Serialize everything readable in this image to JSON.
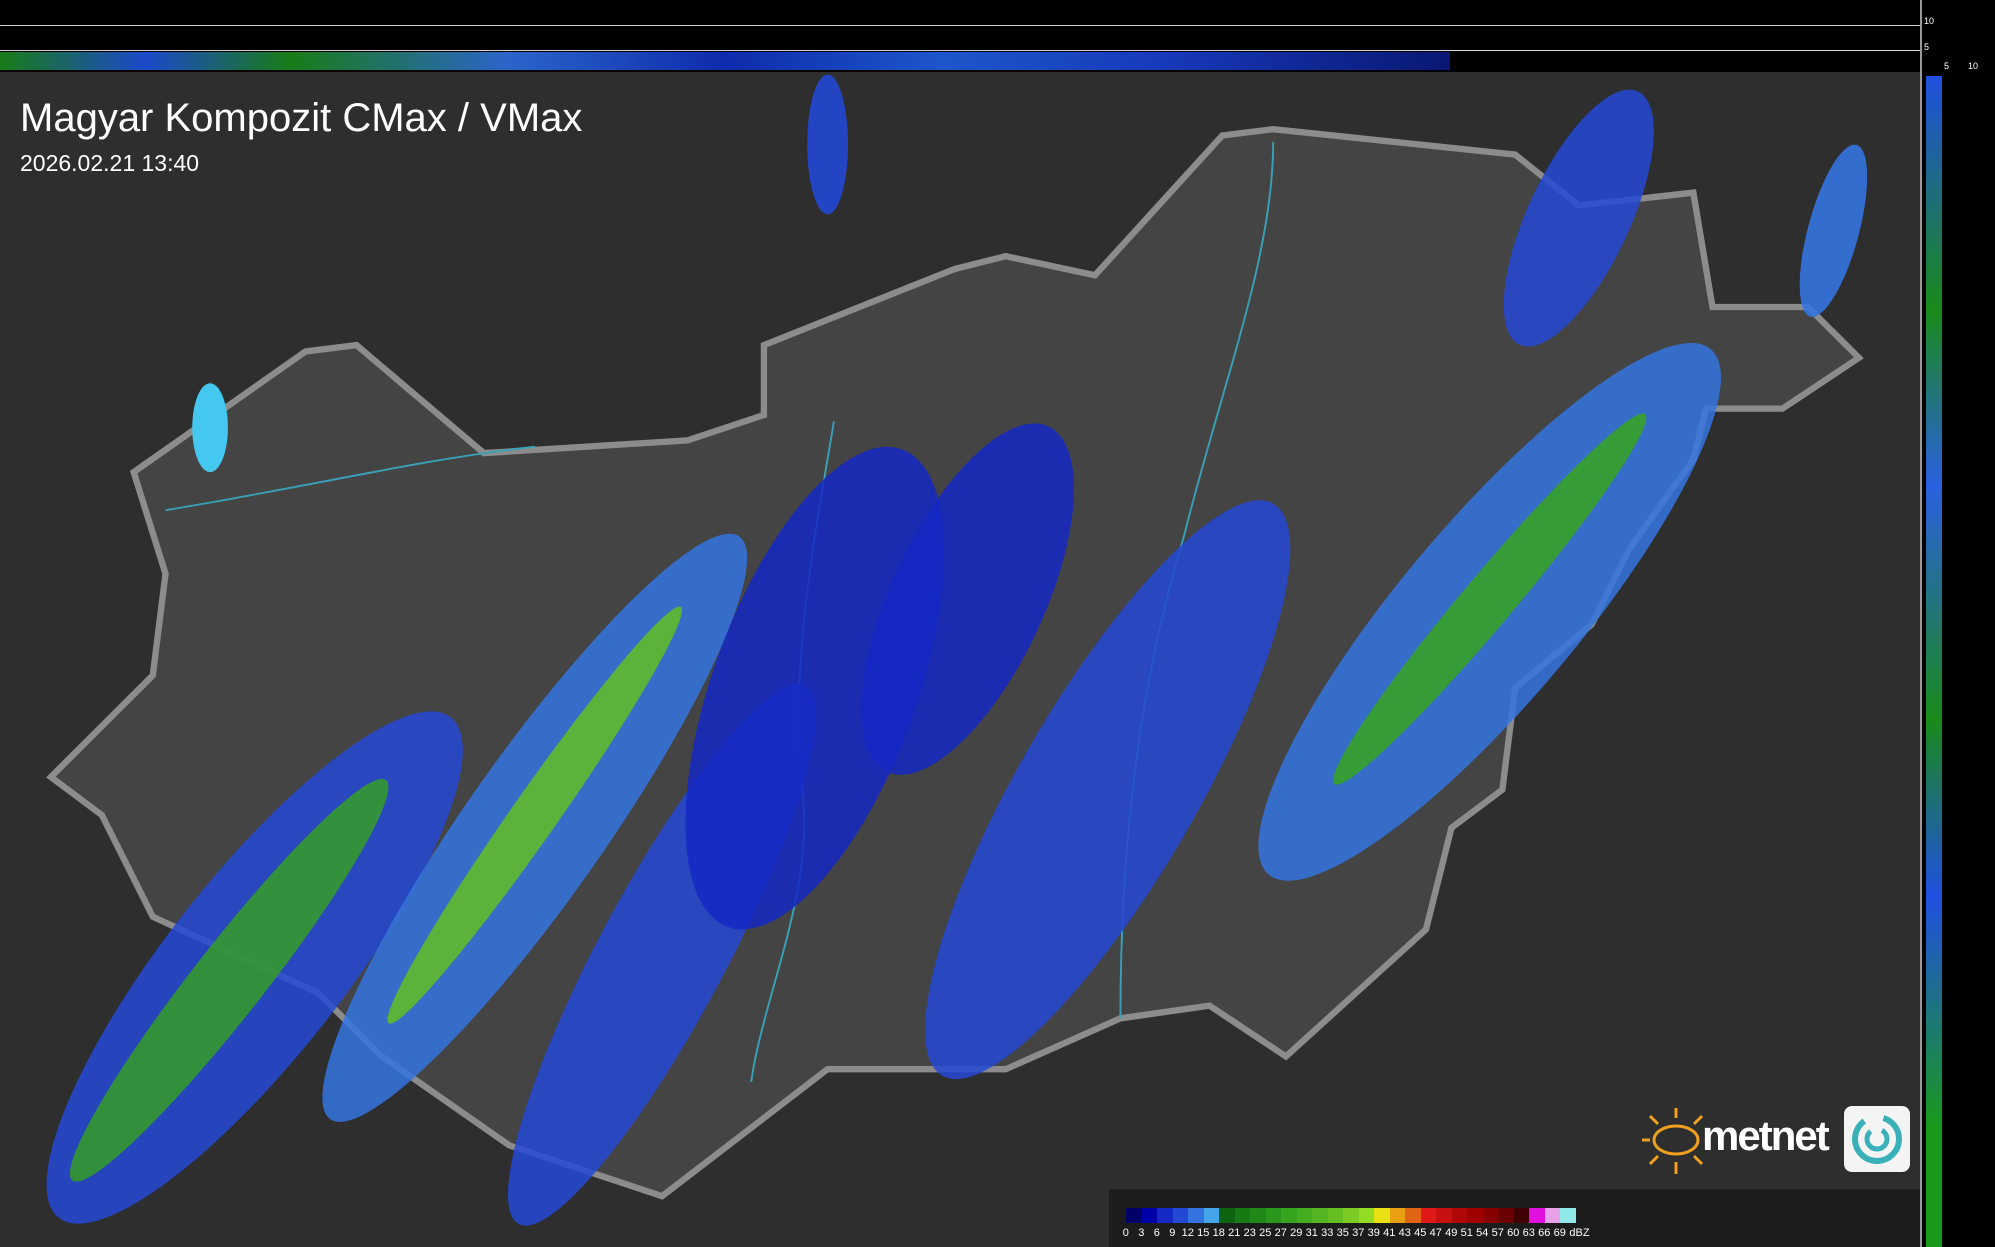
{
  "header": {
    "title": "Magyar Kompozit CMax / VMax",
    "timestamp": "2026.02.21 13:40"
  },
  "side_axis": {
    "top_ticks": [
      "10",
      "5"
    ],
    "bottom_ticks": [
      "5",
      "10"
    ]
  },
  "logo": {
    "brand": "metnet"
  },
  "legend": {
    "unit": "dBZ",
    "labels": [
      "0",
      "3",
      "6",
      "9",
      "12",
      "15",
      "18",
      "21",
      "23",
      "25",
      "27",
      "29",
      "31",
      "33",
      "35",
      "37",
      "39",
      "41",
      "43",
      "45",
      "47",
      "49",
      "51",
      "54",
      "57",
      "60",
      "63",
      "66",
      "69"
    ],
    "colors": [
      "#000068",
      "#0000a8",
      "#1428c4",
      "#2448d4",
      "#3474e0",
      "#44a4ec",
      "#0e6410",
      "#187a12",
      "#208816",
      "#2a961c",
      "#36a41e",
      "#44ae20",
      "#54b622",
      "#64be22",
      "#7cca24",
      "#94dc24",
      "#e8e012",
      "#e8a012",
      "#e06414",
      "#e01818",
      "#c81010",
      "#b00808",
      "#a00000",
      "#880000",
      "#6a0000",
      "#3e0000",
      "#e010e0",
      "#e8a0e8",
      "#90e8e8"
    ]
  },
  "colors": {
    "map_background": "#2e2e2e",
    "country_fill": "#444444",
    "border": "#8c8c8c",
    "rivers": "#3aa0b8"
  }
}
